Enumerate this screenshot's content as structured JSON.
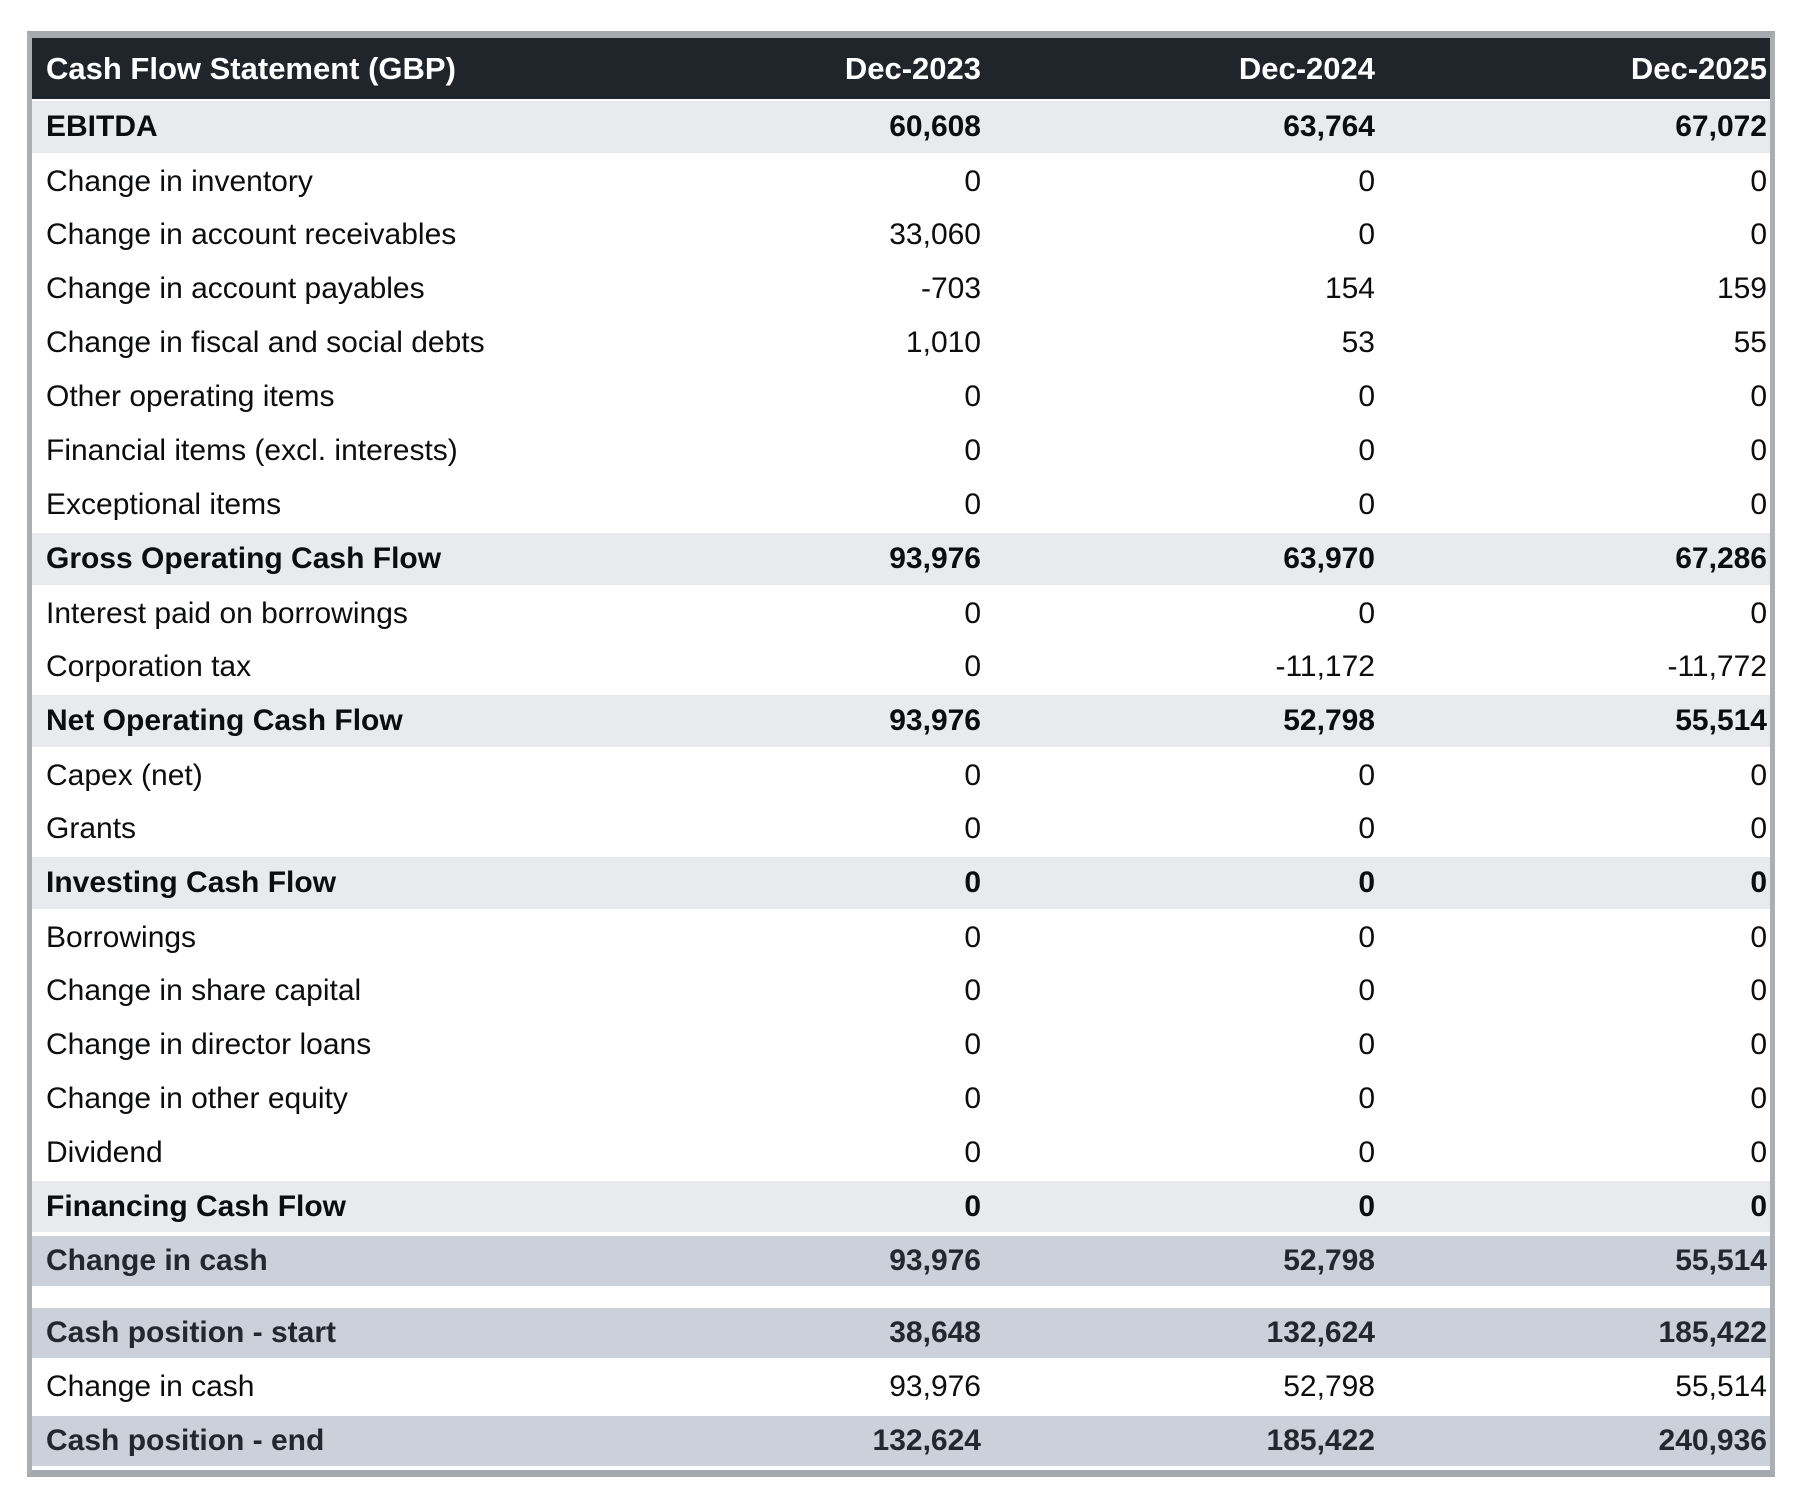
{
  "table": {
    "title": "Cash Flow Statement (GBP)",
    "columns": [
      "Dec-2023",
      "Dec-2024",
      "Dec-2025"
    ],
    "rows": [
      {
        "label": "EBITDA",
        "values": [
          "60,608",
          "63,764",
          "67,072"
        ],
        "style": "subtotal"
      },
      {
        "label": "Change in inventory",
        "values": [
          "0",
          "0",
          "0"
        ],
        "style": "normal"
      },
      {
        "label": "Change in account receivables",
        "values": [
          "33,060",
          "0",
          "0"
        ],
        "style": "normal"
      },
      {
        "label": "Change in account payables",
        "values": [
          "-703",
          "154",
          "159"
        ],
        "style": "normal"
      },
      {
        "label": "Change in fiscal and social debts",
        "values": [
          "1,010",
          "53",
          "55"
        ],
        "style": "normal"
      },
      {
        "label": "Other operating items",
        "values": [
          "0",
          "0",
          "0"
        ],
        "style": "normal"
      },
      {
        "label": "Financial items (excl. interests)",
        "values": [
          "0",
          "0",
          "0"
        ],
        "style": "normal"
      },
      {
        "label": "Exceptional items",
        "values": [
          "0",
          "0",
          "0"
        ],
        "style": "normal"
      },
      {
        "label": "Gross Operating Cash Flow",
        "values": [
          "93,976",
          "63,970",
          "67,286"
        ],
        "style": "subtotal"
      },
      {
        "label": "Interest paid on borrowings",
        "values": [
          "0",
          "0",
          "0"
        ],
        "style": "normal"
      },
      {
        "label": "Corporation tax",
        "values": [
          "0",
          "-11,172",
          "-11,772"
        ],
        "style": "normal"
      },
      {
        "label": "Net Operating Cash Flow",
        "values": [
          "93,976",
          "52,798",
          "55,514"
        ],
        "style": "subtotal"
      },
      {
        "label": "Capex (net)",
        "values": [
          "0",
          "0",
          "0"
        ],
        "style": "normal"
      },
      {
        "label": "Grants",
        "values": [
          "0",
          "0",
          "0"
        ],
        "style": "normal"
      },
      {
        "label": "Investing Cash Flow",
        "values": [
          "0",
          "0",
          "0"
        ],
        "style": "subtotal"
      },
      {
        "label": "Borrowings",
        "values": [
          "0",
          "0",
          "0"
        ],
        "style": "normal"
      },
      {
        "label": "Change in share capital",
        "values": [
          "0",
          "0",
          "0"
        ],
        "style": "normal"
      },
      {
        "label": "Change in director loans",
        "values": [
          "0",
          "0",
          "0"
        ],
        "style": "normal"
      },
      {
        "label": "Change in other equity",
        "values": [
          "0",
          "0",
          "0"
        ],
        "style": "normal"
      },
      {
        "label": "Dividend",
        "values": [
          "0",
          "0",
          "0"
        ],
        "style": "normal"
      },
      {
        "label": "Financing Cash Flow",
        "values": [
          "0",
          "0",
          "0"
        ],
        "style": "subtotal"
      },
      {
        "label": "Change in cash",
        "values": [
          "93,976",
          "52,798",
          "55,514"
        ],
        "style": "summary"
      },
      {
        "label": "",
        "values": [],
        "style": "spacer"
      },
      {
        "label": "Cash position - start",
        "values": [
          "38,648",
          "132,624",
          "185,422"
        ],
        "style": "summary"
      },
      {
        "label": "Change in cash",
        "values": [
          "93,976",
          "52,798",
          "55,514"
        ],
        "style": "normal"
      },
      {
        "label": "Cash position - end",
        "values": [
          "132,624",
          "185,422",
          "240,936"
        ],
        "style": "summary"
      }
    ]
  },
  "colors": {
    "header_bg": "#20242b",
    "header_text": "#ffffff",
    "subtotal_bg": "#e8eaee",
    "summary_bg": "#cbd1da",
    "border": "#a3a9ac",
    "body_text": "#0c0d0f"
  }
}
